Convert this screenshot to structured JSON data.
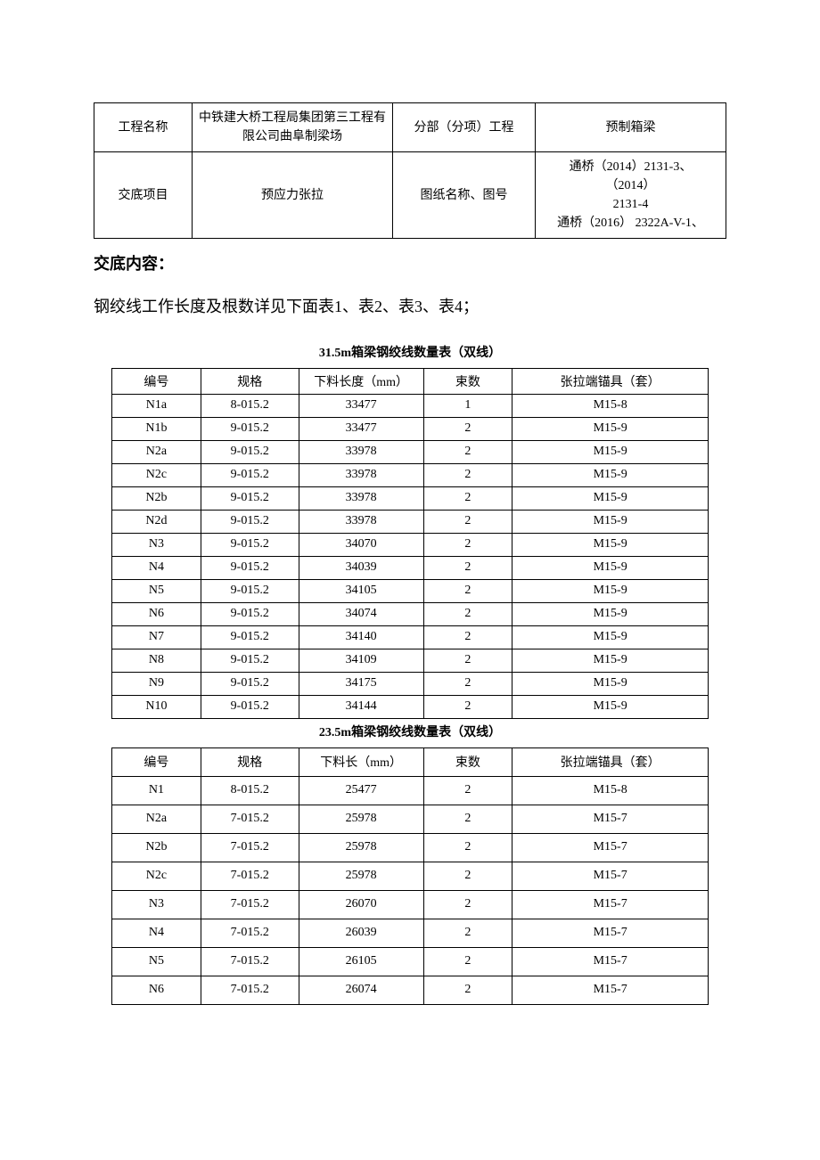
{
  "header": {
    "row1": {
      "label1": "工程名称",
      "value1": "中铁建大桥工程局集团第三工程有限公司曲阜制梁场",
      "label2": "分部（分项）工程",
      "value2": "预制箱梁"
    },
    "row2": {
      "label1": "交底项目",
      "value1": "预应力张拉",
      "label2": "图纸名称、图号",
      "value2_line1": "通桥（2014）2131-3、",
      "value2_line2": "（2014）",
      "value2_line3": "2131-4",
      "value2_line4": "通桥（2016） 2322A-V-1、"
    }
  },
  "section_heading": "交底内容：",
  "intro_text": "钢绞线工作长度及根数详见下面表1、表2、表3、表4；",
  "table1": {
    "title": "31.5m箱梁钢绞线数量表（双线）",
    "columns": [
      "编号",
      "规格",
      "下料长度（mm）",
      "束数",
      "张拉端锚具（套）"
    ],
    "col_widths": [
      "c1",
      "c2",
      "c3",
      "c4",
      "c5"
    ],
    "rows": [
      [
        "N1a",
        "8-015.2",
        "33477",
        "1",
        "M15-8"
      ],
      [
        "N1b",
        "9-015.2",
        "33477",
        "2",
        "M15-9"
      ],
      [
        "N2a",
        "9-015.2",
        "33978",
        "2",
        "M15-9"
      ],
      [
        "N2c",
        "9-015.2",
        "33978",
        "2",
        "M15-9"
      ],
      [
        "N2b",
        "9-015.2",
        "33978",
        "2",
        "M15-9"
      ],
      [
        "N2d",
        "9-015.2",
        "33978",
        "2",
        "M15-9"
      ],
      [
        "N3",
        "9-015.2",
        "34070",
        "2",
        "M15-9"
      ],
      [
        "N4",
        "9-015.2",
        "34039",
        "2",
        "M15-9"
      ],
      [
        "N5",
        "9-015.2",
        "34105",
        "2",
        "M15-9"
      ],
      [
        "N6",
        "9-015.2",
        "34074",
        "2",
        "M15-9"
      ],
      [
        "N7",
        "9-015.2",
        "34140",
        "2",
        "M15-9"
      ],
      [
        "N8",
        "9-015.2",
        "34109",
        "2",
        "M15-9"
      ],
      [
        "N9",
        "9-015.2",
        "34175",
        "2",
        "M15-9"
      ],
      [
        "N10",
        "9-015.2",
        "34144",
        "2",
        "M15-9"
      ]
    ]
  },
  "table2": {
    "title": "23.5m箱梁钢绞线数量表（双线）",
    "columns": [
      "编号",
      "规格",
      "下料长（mm）",
      "束数",
      "张拉端锚具（套）"
    ],
    "col_widths": [
      "c1",
      "c2",
      "c3",
      "c4",
      "c5"
    ],
    "rows": [
      [
        "N1",
        "8-015.2",
        "25477",
        "2",
        "M15-8"
      ],
      [
        "N2a",
        "7-015.2",
        "25978",
        "2",
        "M15-7"
      ],
      [
        "N2b",
        "7-015.2",
        "25978",
        "2",
        "M15-7"
      ],
      [
        "N2c",
        "7-015.2",
        "25978",
        "2",
        "M15-7"
      ],
      [
        "N3",
        "7-015.2",
        "26070",
        "2",
        "M15-7"
      ],
      [
        "N4",
        "7-015.2",
        "26039",
        "2",
        "M15-7"
      ],
      [
        "N5",
        "7-015.2",
        "26105",
        "2",
        "M15-7"
      ],
      [
        "N6",
        "7-015.2",
        "26074",
        "2",
        "M15-7"
      ]
    ]
  }
}
